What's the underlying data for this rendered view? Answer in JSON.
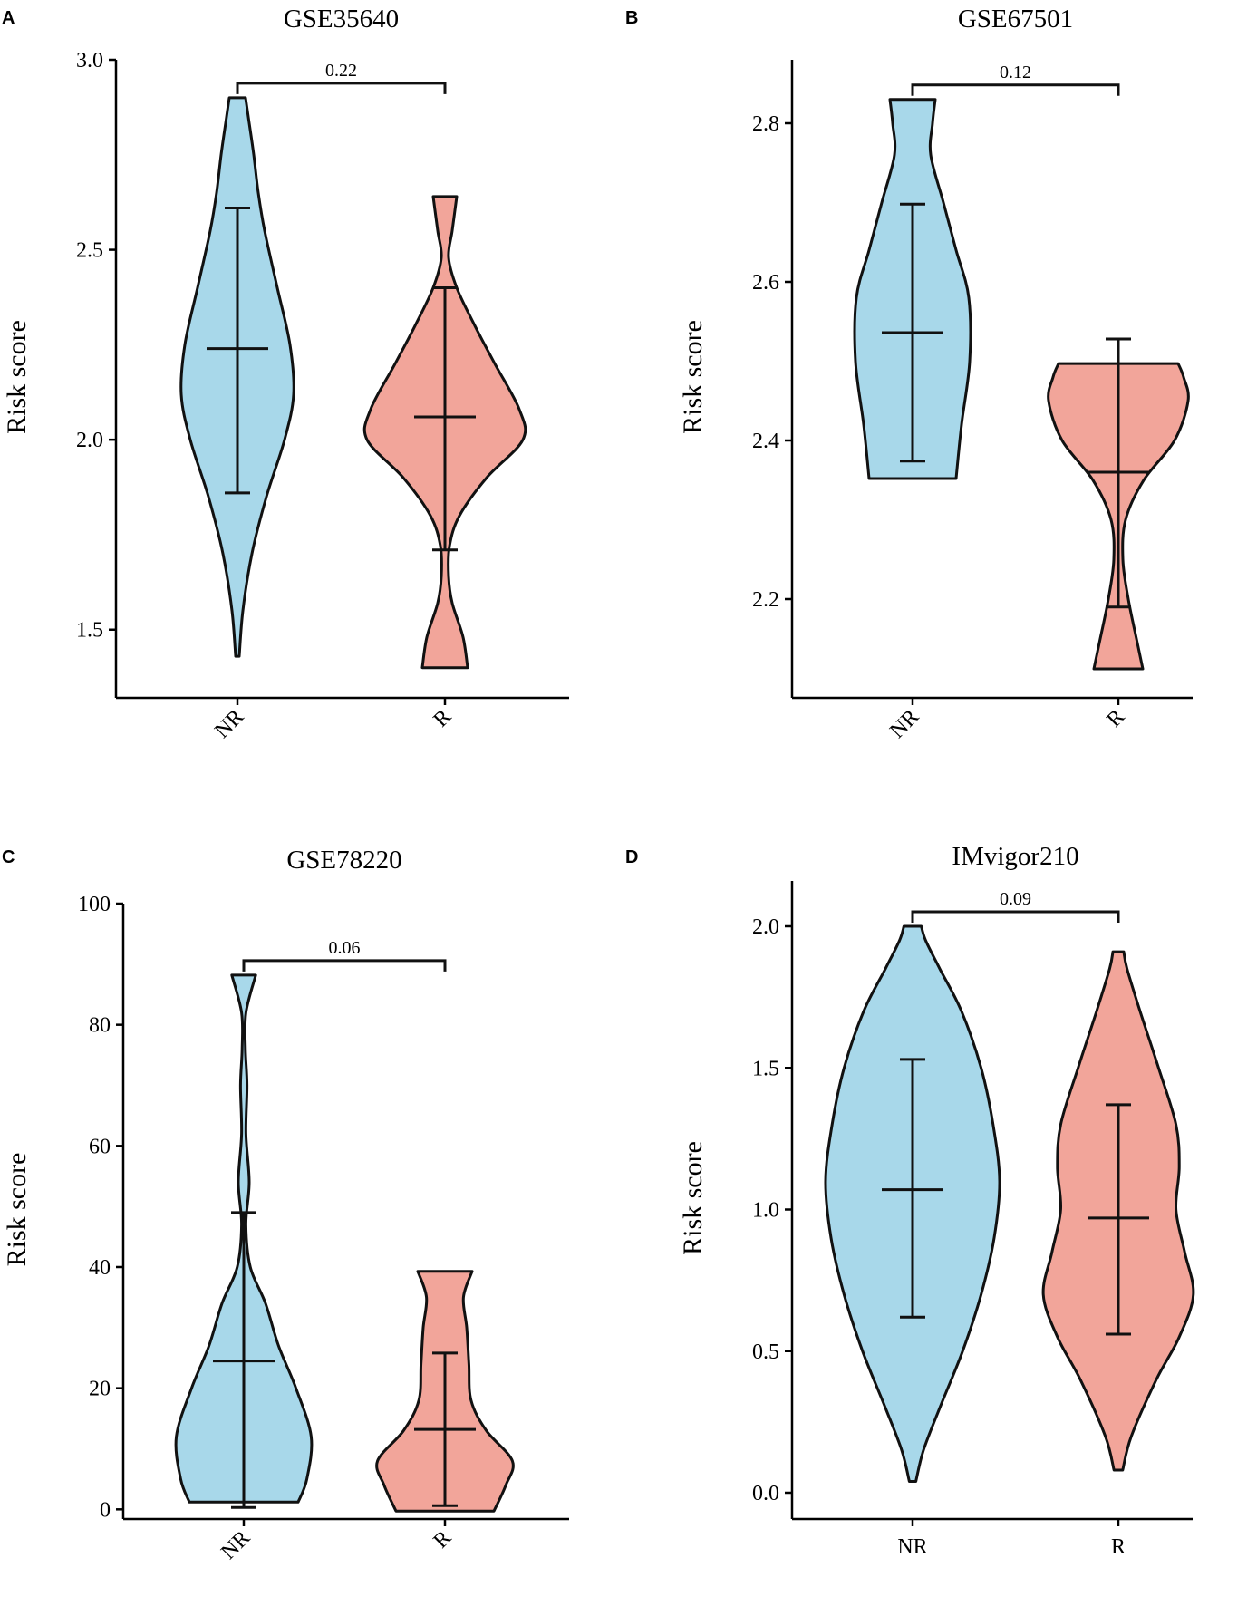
{
  "chart_data": [
    {
      "type": "violin",
      "panel_label": "A",
      "title": "GSE35640",
      "xlabel": "",
      "ylabel": "Risk score",
      "ylim": [
        1.33,
        3.0
      ],
      "yticks": [
        "1.5",
        "2.0",
        "2.5",
        "3.0"
      ],
      "categories": [
        "NR",
        "R"
      ],
      "rotate_x_labels": true,
      "colors": [
        "#a8d8ea",
        "#f2a59a"
      ],
      "p_value": "0.22",
      "groups": [
        {
          "name": "NR",
          "min": 1.43,
          "max": 2.9,
          "mean": 2.24,
          "sd_low": 1.86,
          "sd_high": 2.61,
          "density": [
            [
              1.43,
              0.02
            ],
            [
              1.55,
              0.06
            ],
            [
              1.7,
              0.16
            ],
            [
              1.85,
              0.32
            ],
            [
              2.0,
              0.52
            ],
            [
              2.12,
              0.62
            ],
            [
              2.25,
              0.58
            ],
            [
              2.4,
              0.44
            ],
            [
              2.55,
              0.3
            ],
            [
              2.65,
              0.23
            ],
            [
              2.75,
              0.18
            ],
            [
              2.85,
              0.12
            ],
            [
              2.9,
              0.09
            ]
          ]
        },
        {
          "name": "R",
          "min": 1.4,
          "max": 2.64,
          "mean": 2.06,
          "sd_low": 1.71,
          "sd_high": 2.4,
          "density": [
            [
              1.4,
              0.25
            ],
            [
              1.48,
              0.2
            ],
            [
              1.57,
              0.08
            ],
            [
              1.64,
              0.04
            ],
            [
              1.72,
              0.05
            ],
            [
              1.8,
              0.16
            ],
            [
              1.9,
              0.46
            ],
            [
              2.0,
              0.86
            ],
            [
              2.08,
              0.82
            ],
            [
              2.2,
              0.55
            ],
            [
              2.3,
              0.33
            ],
            [
              2.4,
              0.13
            ],
            [
              2.48,
              0.04
            ],
            [
              2.55,
              0.08
            ],
            [
              2.64,
              0.13
            ]
          ]
        }
      ]
    },
    {
      "type": "violin",
      "panel_label": "B",
      "title": "GSE67501",
      "xlabel": "",
      "ylabel": "Risk score",
      "ylim": [
        2.08,
        2.88
      ],
      "yticks": [
        "2.2",
        "2.4",
        "2.6",
        "2.8"
      ],
      "categories": [
        "NR",
        "R"
      ],
      "rotate_x_labels": true,
      "colors": [
        "#a8d8ea",
        "#f2a59a"
      ],
      "p_value": "0.12",
      "groups": [
        {
          "name": "NR",
          "min": 2.352,
          "max": 2.83,
          "mean": 2.536,
          "sd_low": 2.374,
          "sd_high": 2.698,
          "density": [
            [
              2.352,
              0.48
            ],
            [
              2.42,
              0.54
            ],
            [
              2.5,
              0.63
            ],
            [
              2.58,
              0.62
            ],
            [
              2.64,
              0.48
            ],
            [
              2.7,
              0.34
            ],
            [
              2.76,
              0.2
            ],
            [
              2.8,
              0.22
            ],
            [
              2.83,
              0.25
            ]
          ]
        },
        {
          "name": "R",
          "min": 2.112,
          "max": 2.497,
          "mean": 2.36,
          "sd_low": 2.19,
          "sd_high": 2.528,
          "density": [
            [
              2.112,
              0.27
            ],
            [
              2.15,
              0.2
            ],
            [
              2.2,
              0.11
            ],
            [
              2.25,
              0.05
            ],
            [
              2.3,
              0.08
            ],
            [
              2.35,
              0.28
            ],
            [
              2.4,
              0.62
            ],
            [
              2.45,
              0.77
            ],
            [
              2.48,
              0.72
            ],
            [
              2.497,
              0.66
            ]
          ]
        }
      ]
    },
    {
      "type": "violin",
      "panel_label": "C",
      "title": "GSE78220",
      "xlabel": "",
      "ylabel": "Risk score",
      "ylim": [
        -1.0,
        100
      ],
      "yticks": [
        "0",
        "20",
        "40",
        "60",
        "80",
        "100"
      ],
      "categories": [
        "NR",
        "R"
      ],
      "rotate_x_labels": true,
      "colors": [
        "#a8d8ea",
        "#f2a59a"
      ],
      "p_value": "0.06",
      "groups": [
        {
          "name": "NR",
          "min": 1.2,
          "max": 88.2,
          "mean": 24.5,
          "sd_low": 0.3,
          "sd_high": 49,
          "density": [
            [
              1.2,
              0.5
            ],
            [
              5,
              0.58
            ],
            [
              12,
              0.62
            ],
            [
              20,
              0.48
            ],
            [
              27,
              0.32
            ],
            [
              34,
              0.2
            ],
            [
              40,
              0.06
            ],
            [
              47,
              0.02
            ],
            [
              54,
              0.05
            ],
            [
              62,
              0.02
            ],
            [
              70,
              0.03
            ],
            [
              76,
              0.015
            ],
            [
              82,
              0.02
            ],
            [
              88.2,
              0.11
            ]
          ]
        },
        {
          "name": "R",
          "min": -0.3,
          "max": 39.3,
          "mean": 13.2,
          "sd_low": 0.6,
          "sd_high": 25.8,
          "density": [
            [
              -0.3,
              0.45
            ],
            [
              4,
              0.56
            ],
            [
              8,
              0.62
            ],
            [
              13,
              0.38
            ],
            [
              18,
              0.24
            ],
            [
              24,
              0.22
            ],
            [
              30,
              0.2
            ],
            [
              35,
              0.17
            ],
            [
              39.3,
              0.25
            ]
          ]
        }
      ]
    },
    {
      "type": "violin",
      "panel_label": "D",
      "title": "IMvigor210",
      "xlabel": "",
      "ylabel": "Risk score",
      "ylim": [
        -0.08,
        2.16
      ],
      "yticks": [
        "0.0",
        "0.5",
        "1.0",
        "1.5",
        "2.0"
      ],
      "categories": [
        "NR",
        "R"
      ],
      "rotate_x_labels": false,
      "colors": [
        "#a8d8ea",
        "#f2a59a"
      ],
      "p_value": "0.09",
      "groups": [
        {
          "name": "NR",
          "min": 0.04,
          "max": 2.0,
          "mean": 1.07,
          "sd_low": 0.62,
          "sd_high": 1.53,
          "density": [
            [
              0.04,
              0.03
            ],
            [
              0.15,
              0.1
            ],
            [
              0.3,
              0.25
            ],
            [
              0.5,
              0.46
            ],
            [
              0.7,
              0.63
            ],
            [
              0.9,
              0.75
            ],
            [
              1.1,
              0.8
            ],
            [
              1.3,
              0.74
            ],
            [
              1.5,
              0.63
            ],
            [
              1.7,
              0.45
            ],
            [
              1.85,
              0.25
            ],
            [
              1.95,
              0.12
            ],
            [
              2.0,
              0.08
            ]
          ]
        },
        {
          "name": "R",
          "min": 0.08,
          "max": 1.91,
          "mean": 0.97,
          "sd_low": 0.56,
          "sd_high": 1.37,
          "density": [
            [
              0.08,
              0.04
            ],
            [
              0.2,
              0.12
            ],
            [
              0.4,
              0.35
            ],
            [
              0.55,
              0.56
            ],
            [
              0.7,
              0.69
            ],
            [
              0.85,
              0.61
            ],
            [
              1.0,
              0.53
            ],
            [
              1.15,
              0.56
            ],
            [
              1.3,
              0.53
            ],
            [
              1.5,
              0.37
            ],
            [
              1.7,
              0.2
            ],
            [
              1.85,
              0.08
            ],
            [
              1.91,
              0.05
            ]
          ]
        }
      ]
    }
  ]
}
